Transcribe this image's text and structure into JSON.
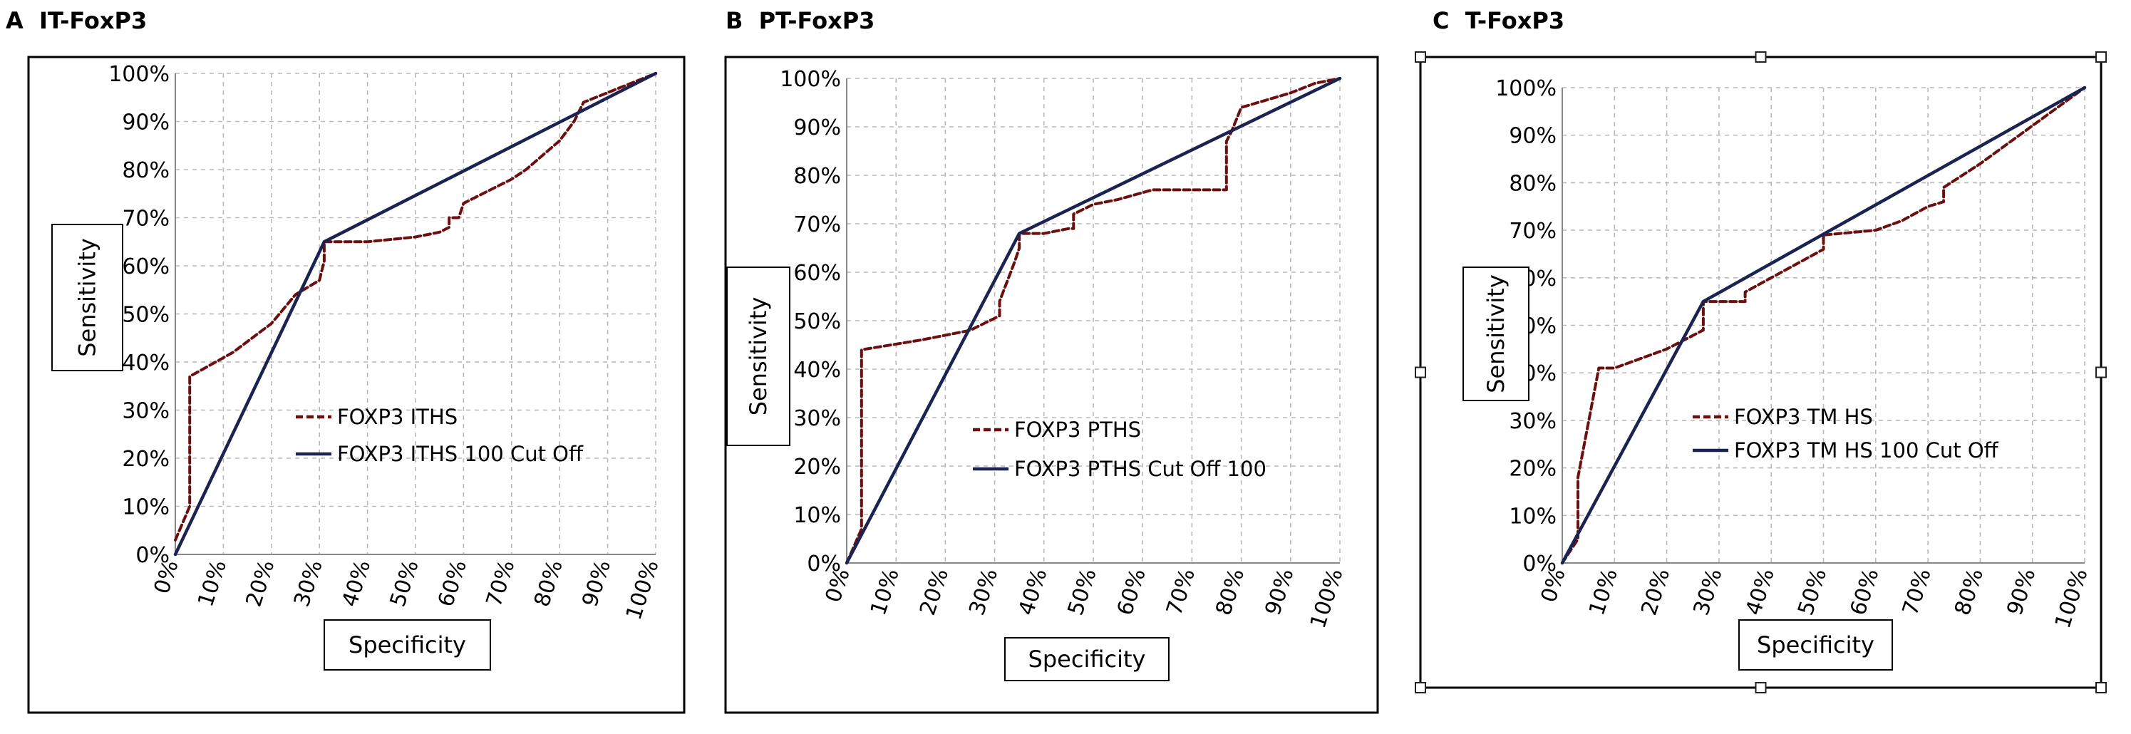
{
  "chart_data": [
    {
      "panel_letter": "A",
      "panel_name": "IT-FoxP3",
      "type": "line",
      "xlabel": "Specificity",
      "ylabel": "Sensitivity",
      "xlim": [
        0,
        100
      ],
      "ylim": [
        0,
        100
      ],
      "tick_labels": [
        "0%",
        "10%",
        "20%",
        "30%",
        "40%",
        "50%",
        "60%",
        "70%",
        "80%",
        "90%",
        "100%"
      ],
      "grid": true,
      "legend_position": "center",
      "colors": {
        "roc": "#6b0f0f",
        "cutoff": "#1b2350"
      },
      "series": [
        {
          "name": "FOXP3 ITHS",
          "style": "dashed",
          "x": [
            0,
            3,
            3,
            12,
            20,
            25,
            30,
            31,
            31,
            40,
            50,
            55,
            57,
            57,
            59,
            60,
            62,
            70,
            73,
            80,
            83,
            85,
            90,
            95,
            100
          ],
          "y": [
            3,
            10,
            37,
            42,
            48,
            54,
            57,
            61,
            65,
            65,
            66,
            67,
            68,
            70,
            70,
            73,
            74,
            78,
            80,
            86,
            90,
            94,
            96,
            98,
            100
          ]
        },
        {
          "name": "FOXP3 ITHS 100 Cut Off",
          "style": "solid",
          "x": [
            0,
            31,
            100
          ],
          "y": [
            0,
            65,
            100
          ]
        }
      ]
    },
    {
      "panel_letter": "B",
      "panel_name": "PT-FoxP3",
      "type": "line",
      "xlabel": "Specificity",
      "ylabel": "Sensitivity",
      "xlim": [
        0,
        100
      ],
      "ylim": [
        0,
        100
      ],
      "tick_labels": [
        "0%",
        "10%",
        "20%",
        "30%",
        "40%",
        "50%",
        "60%",
        "70%",
        "80%",
        "90%",
        "100%"
      ],
      "grid": true,
      "legend_position": "center",
      "colors": {
        "roc": "#6b0f0f",
        "cutoff": "#1b2350"
      },
      "series": [
        {
          "name": "FOXP3 PTHS",
          "style": "dashed",
          "x": [
            0,
            3,
            3,
            15,
            25,
            31,
            31,
            34,
            35,
            35,
            40,
            45,
            46,
            46,
            50,
            55,
            62,
            77,
            77,
            78,
            80,
            90,
            95,
            100
          ],
          "y": [
            0,
            7,
            44,
            46,
            48,
            51,
            54,
            62,
            65,
            68,
            68,
            69,
            69,
            72,
            74,
            75,
            77,
            77,
            87,
            89,
            94,
            97,
            99,
            100
          ]
        },
        {
          "name": "FOXP3 PTHS Cut Off 100",
          "style": "solid",
          "x": [
            0,
            35,
            100
          ],
          "y": [
            0,
            68,
            100
          ]
        }
      ]
    },
    {
      "panel_letter": "C",
      "panel_name": "T-FoxP3",
      "type": "line",
      "xlabel": "Specificity",
      "ylabel": "Sensitivity",
      "xlim": [
        0,
        100
      ],
      "ylim": [
        0,
        100
      ],
      "tick_labels": [
        "0%",
        "10%",
        "20%",
        "30%",
        "40%",
        "50%",
        "60%",
        "70%",
        "80%",
        "90%",
        "100%"
      ],
      "grid": true,
      "legend_position": "center",
      "colors": {
        "roc": "#6b0f0f",
        "cutoff": "#1b2350"
      },
      "series": [
        {
          "name": "FOXP3 TM HS",
          "style": "dashed",
          "x": [
            0,
            3,
            3,
            7,
            10,
            20,
            27,
            27,
            35,
            35,
            40,
            50,
            50,
            60,
            65,
            70,
            73,
            73,
            80,
            90,
            100
          ],
          "y": [
            0,
            5,
            18,
            41,
            41,
            45,
            49,
            55,
            55,
            57,
            60,
            66,
            69,
            70,
            72,
            75,
            76,
            79,
            84,
            92,
            100
          ]
        },
        {
          "name": "FOXP3 TM HS 100 Cut Off",
          "style": "solid",
          "x": [
            0,
            27,
            100
          ],
          "y": [
            0,
            55,
            100
          ]
        }
      ]
    }
  ]
}
